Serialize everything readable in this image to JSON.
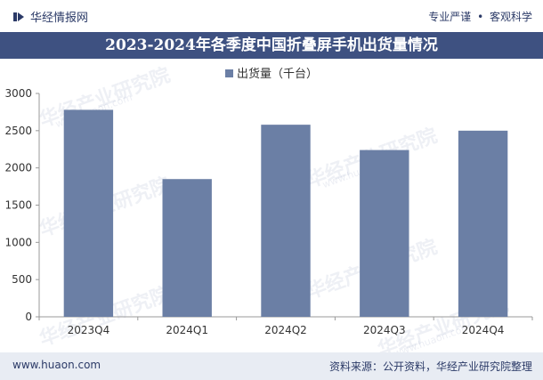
{
  "header": {
    "brand": "华经情报网",
    "tagline_left": "专业严谨",
    "tagline_right": "客观科学"
  },
  "title": "2023-2024年各季度中国折叠屏手机出货量情况",
  "watermark": {
    "text": "华经产业研究院",
    "url": "www.huaon.com"
  },
  "footer": {
    "site": "www.huaon.com",
    "source": "资料来源：公开资料，华经产业研究院整理"
  },
  "chart_data": {
    "type": "bar",
    "title": "2023-2024年各季度中国折叠屏手机出货量情况",
    "series": [
      {
        "name": "出货量（千台）",
        "color": "#6b7fa5",
        "values": [
          2780,
          1850,
          2580,
          2240,
          2500
        ]
      }
    ],
    "categories": [
      "2023Q4",
      "2024Q1",
      "2024Q2",
      "2024Q3",
      "2024Q4"
    ],
    "xlabel": "",
    "ylabel": "",
    "ylim": [
      0,
      3000
    ],
    "yticks": [
      0,
      500,
      1000,
      1500,
      2000,
      2500,
      3000
    ],
    "grid": false,
    "legend": "top-center"
  }
}
